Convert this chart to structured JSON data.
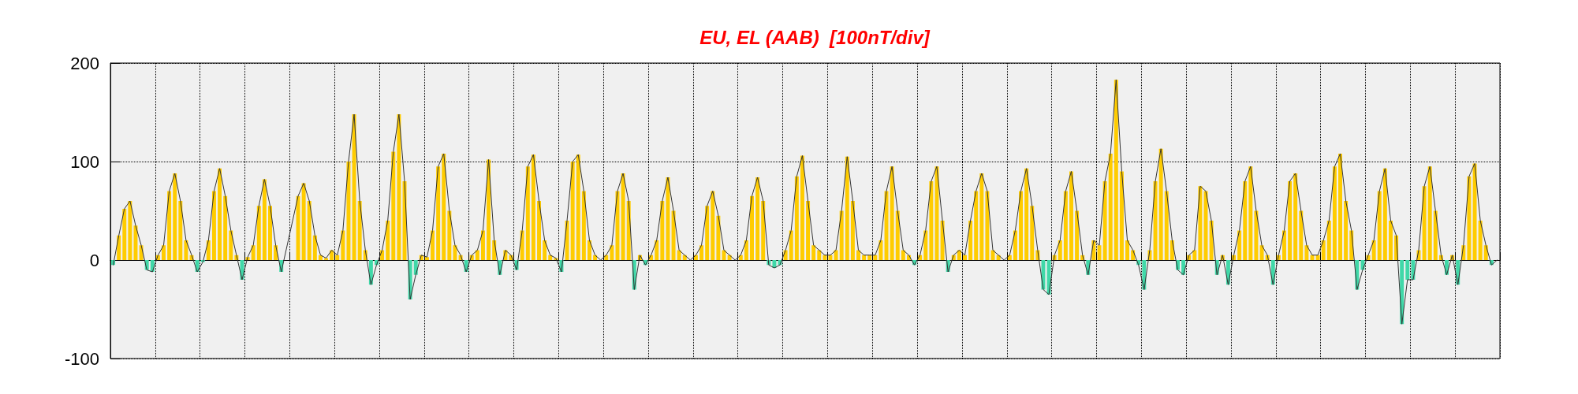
{
  "chart_data": {
    "type": "line",
    "title": "EU, EL (AAB)  [100nT/div]",
    "categories": [
      null,
      null,
      null,
      null,
      null,
      null,
      null,
      null,
      null,
      null,
      null,
      null,
      null,
      null,
      null,
      null,
      null,
      null,
      null,
      null,
      null,
      null,
      null,
      null,
      null,
      null,
      null,
      null,
      null,
      null,
      null,
      null,
      null,
      null,
      null,
      null,
      null,
      null,
      null,
      null,
      null,
      null,
      null,
      null,
      null,
      null,
      null,
      null,
      null,
      null,
      null,
      null,
      null,
      null,
      null,
      null,
      null,
      null,
      null,
      null,
      null,
      null,
      null,
      null,
      null,
      null,
      null,
      null,
      null,
      null,
      null,
      null,
      null,
      null,
      null,
      null,
      null,
      null,
      null,
      null,
      null,
      null,
      null,
      null,
      null,
      null,
      null,
      null,
      null,
      null,
      null,
      null,
      null,
      null,
      null,
      null,
      null,
      null,
      null,
      null,
      null,
      null,
      null,
      null,
      null,
      null,
      null,
      null,
      null,
      null,
      null,
      null,
      null,
      null,
      null,
      null,
      null,
      null,
      null,
      null,
      null,
      null,
      null,
      null,
      null,
      null,
      null,
      null,
      null,
      null,
      null,
      null,
      null,
      null,
      null,
      null,
      null,
      null,
      null,
      null,
      null,
      null,
      null,
      null,
      null,
      null,
      null,
      null,
      null,
      null,
      null,
      null,
      null,
      null,
      null,
      null,
      null,
      null,
      null,
      null,
      null,
      null,
      null,
      null,
      null,
      null,
      null,
      null,
      null,
      null,
      null,
      null,
      null,
      null,
      null,
      null,
      null,
      null,
      null,
      null,
      null,
      null,
      null,
      null,
      null,
      null,
      null,
      null,
      null,
      null,
      null,
      null,
      null,
      null,
      null,
      null,
      null,
      null,
      null,
      null,
      null,
      null,
      null,
      null,
      null,
      null,
      null,
      null,
      null,
      null,
      null,
      null,
      null,
      null,
      null,
      null,
      null,
      null,
      null,
      null,
      null,
      null,
      null,
      null,
      null,
      null,
      null,
      null,
      null,
      null,
      null,
      null,
      null,
      null,
      null,
      null,
      null,
      null,
      null,
      null,
      null,
      null,
      null,
      null,
      null,
      null,
      null,
      null
    ],
    "series": [
      {
        "type": "bar",
        "color": "#ffcc00",
        "values": [
          null,
          25,
          52,
          60,
          35,
          15,
          null,
          null,
          5,
          15,
          70,
          88,
          60,
          20,
          5,
          null,
          null,
          20,
          70,
          93,
          65,
          30,
          5,
          null,
          3,
          15,
          55,
          82,
          55,
          15,
          null,
          null,
          null,
          65,
          78,
          60,
          25,
          5,
          2,
          10,
          5,
          30,
          100,
          148,
          60,
          10,
          null,
          null,
          10,
          40,
          110,
          148,
          80,
          null,
          null,
          5,
          3,
          30,
          95,
          108,
          50,
          15,
          5,
          null,
          5,
          10,
          30,
          102,
          20,
          null,
          10,
          5,
          null,
          30,
          95,
          107,
          60,
          20,
          5,
          2,
          null,
          40,
          100,
          107,
          70,
          20,
          5,
          0,
          5,
          15,
          70,
          88,
          60,
          null,
          5,
          null,
          5,
          20,
          60,
          84,
          50,
          10,
          5,
          0,
          5,
          15,
          55,
          70,
          45,
          10,
          5,
          0,
          5,
          20,
          65,
          84,
          60,
          null,
          null,
          null,
          10,
          30,
          85,
          106,
          60,
          15,
          10,
          5,
          5,
          10,
          50,
          105,
          60,
          10,
          5,
          5,
          5,
          20,
          70,
          95,
          50,
          10,
          5,
          null,
          5,
          30,
          80,
          95,
          40,
          null,
          5,
          10,
          5,
          40,
          70,
          88,
          70,
          10,
          5,
          0,
          5,
          30,
          70,
          93,
          55,
          10,
          null,
          null,
          5,
          20,
          70,
          90,
          50,
          5,
          null,
          20,
          15,
          80,
          108,
          183,
          90,
          20,
          10,
          null,
          null,
          10,
          80,
          113,
          70,
          20,
          null,
          null,
          5,
          10,
          75,
          70,
          40,
          null,
          5,
          null,
          5,
          30,
          80,
          95,
          50,
          15,
          5,
          null,
          5,
          30,
          80,
          88,
          50,
          15,
          5,
          5,
          20,
          40,
          95,
          108,
          60,
          30,
          null,
          null,
          5,
          20,
          70,
          93,
          40,
          25,
          null,
          null,
          null,
          10,
          75,
          95,
          50,
          5,
          null,
          5,
          null,
          15,
          85,
          98,
          40,
          15,
          null,
          0
        ]
      },
      {
        "type": "bar",
        "color": "#40d8a8",
        "values": [
          -5,
          null,
          null,
          null,
          null,
          null,
          -10,
          -12,
          null,
          null,
          null,
          null,
          null,
          null,
          null,
          -12,
          -2,
          null,
          null,
          null,
          null,
          null,
          null,
          -20,
          null,
          null,
          null,
          null,
          null,
          null,
          -12,
          null,
          null,
          null,
          null,
          null,
          null,
          null,
          null,
          null,
          null,
          null,
          null,
          null,
          null,
          null,
          -25,
          -5,
          null,
          null,
          null,
          null,
          null,
          -40,
          -15,
          null,
          null,
          null,
          null,
          null,
          null,
          null,
          null,
          -12,
          null,
          null,
          null,
          null,
          null,
          -15,
          null,
          null,
          -10,
          null,
          null,
          null,
          null,
          null,
          null,
          null,
          -12,
          null,
          null,
          null,
          null,
          null,
          null,
          null,
          null,
          null,
          null,
          null,
          null,
          -30,
          null,
          -5,
          null,
          null,
          null,
          null,
          null,
          null,
          null,
          null,
          null,
          null,
          null,
          null,
          null,
          null,
          null,
          null,
          null,
          null,
          null,
          null,
          null,
          -5,
          -8,
          -5,
          null,
          null,
          null,
          null,
          null,
          null,
          null,
          null,
          null,
          null,
          null,
          null,
          null,
          null,
          null,
          null,
          null,
          null,
          null,
          null,
          null,
          null,
          null,
          -5,
          null,
          null,
          null,
          null,
          null,
          -12,
          null,
          null,
          null,
          null,
          null,
          null,
          null,
          null,
          null,
          null,
          null,
          null,
          null,
          null,
          null,
          null,
          -30,
          -35,
          null,
          null,
          null,
          null,
          null,
          null,
          -15,
          null,
          null,
          null,
          null,
          null,
          null,
          null,
          null,
          -5,
          -30,
          null,
          null,
          null,
          null,
          null,
          -10,
          -15,
          null,
          null,
          null,
          null,
          null,
          -15,
          null,
          -25,
          null,
          null,
          null,
          null,
          null,
          null,
          null,
          -25,
          null,
          null,
          null,
          null,
          null,
          null,
          null,
          null,
          null,
          null,
          null,
          null,
          null,
          null,
          -30,
          -10,
          null,
          null,
          null,
          null,
          null,
          null,
          -65,
          -20,
          -20,
          null,
          null,
          null,
          null,
          null,
          -15,
          null,
          -25,
          null,
          null,
          null,
          null,
          null,
          -5,
          null
        ]
      },
      {
        "color": "#333333",
        "values": [
          -5,
          25,
          52,
          60,
          35,
          15,
          -10,
          -12,
          5,
          15,
          70,
          88,
          60,
          20,
          5,
          -12,
          -2,
          20,
          70,
          93,
          65,
          30,
          5,
          -20,
          3,
          15,
          55,
          82,
          55,
          15,
          -12,
          null,
          null,
          65,
          78,
          60,
          25,
          5,
          2,
          10,
          5,
          30,
          100,
          148,
          60,
          10,
          -25,
          -5,
          10,
          40,
          110,
          148,
          80,
          -40,
          -15,
          5,
          3,
          30,
          95,
          108,
          50,
          15,
          5,
          -12,
          5,
          10,
          30,
          102,
          20,
          -15,
          10,
          5,
          -10,
          30,
          95,
          107,
          60,
          20,
          5,
          2,
          -12,
          40,
          100,
          107,
          70,
          20,
          5,
          0,
          5,
          15,
          70,
          88,
          60,
          -30,
          5,
          -5,
          5,
          20,
          60,
          84,
          50,
          10,
          5,
          0,
          5,
          15,
          55,
          70,
          45,
          10,
          5,
          0,
          5,
          20,
          65,
          84,
          60,
          -5,
          -8,
          -5,
          10,
          30,
          85,
          106,
          60,
          15,
          10,
          5,
          5,
          10,
          50,
          105,
          60,
          10,
          5,
          5,
          5,
          20,
          70,
          95,
          50,
          10,
          5,
          -5,
          5,
          30,
          80,
          95,
          40,
          -12,
          5,
          10,
          5,
          40,
          70,
          88,
          70,
          10,
          5,
          0,
          5,
          30,
          70,
          93,
          55,
          10,
          -30,
          -35,
          5,
          20,
          70,
          90,
          50,
          5,
          -15,
          20,
          15,
          80,
          108,
          183,
          90,
          20,
          10,
          -5,
          -30,
          10,
          80,
          113,
          70,
          20,
          -10,
          -15,
          5,
          10,
          75,
          70,
          40,
          -15,
          5,
          -25,
          5,
          30,
          80,
          95,
          50,
          15,
          5,
          -25,
          5,
          30,
          80,
          88,
          50,
          15,
          5,
          5,
          20,
          40,
          95,
          108,
          60,
          30,
          -30,
          -10,
          5,
          20,
          70,
          93,
          40,
          25,
          -65,
          -20,
          -20,
          10,
          75,
          95,
          50,
          5,
          -15,
          5,
          -25,
          15,
          85,
          98,
          40,
          15,
          -5,
          0
        ]
      }
    ],
    "ylim": [
      -100,
      200
    ],
    "yticks": [
      -100,
      0,
      100,
      200
    ],
    "grid": true,
    "tick_labels": "y"
  }
}
